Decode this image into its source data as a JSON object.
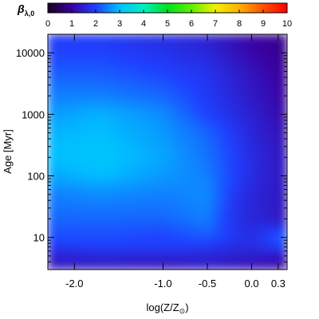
{
  "chart_data": {
    "type": "heatmap",
    "xlabel": "log(Z/Z",
    "xlabel_sub": "⊙",
    "xlabel_close": ")",
    "ylabel": "Age [Myr]",
    "colorbar_label": "β",
    "colorbar_label_sub": "λ,0",
    "colorbar_range": [
      0,
      10
    ],
    "colorbar_ticks": [
      "0",
      "1",
      "2",
      "3",
      "4",
      "5",
      "6",
      "7",
      "8",
      "9",
      "10"
    ],
    "colorbar_stops": [
      {
        "v": 0,
        "color": "#1a0020"
      },
      {
        "v": 1,
        "color": "#3a00a0"
      },
      {
        "v": 2,
        "color": "#1f40ff"
      },
      {
        "v": 3,
        "color": "#00c0ff"
      },
      {
        "v": 4,
        "color": "#00f0c0"
      },
      {
        "v": 5,
        "color": "#00e020"
      },
      {
        "v": 6,
        "color": "#60f000"
      },
      {
        "v": 7,
        "color": "#f0f000"
      },
      {
        "v": 8,
        "color": "#ffb000"
      },
      {
        "v": 9,
        "color": "#ff5000"
      },
      {
        "v": 10,
        "color": "#ff0000"
      }
    ],
    "x_range": [
      -2.3,
      0.4
    ],
    "y_range_log_myr": [
      3,
      20000
    ],
    "y_scale": "log",
    "x_ticks": [
      {
        "value": -2.0,
        "label": "-2.0"
      },
      {
        "value": -1.0,
        "label": "-1.0"
      },
      {
        "value": -0.5,
        "label": "-0.5"
      },
      {
        "value": 0.0,
        "label": "0.0"
      },
      {
        "value": 0.3,
        "label": "0.3"
      }
    ],
    "y_ticks": [
      {
        "value": 10,
        "label": "10"
      },
      {
        "value": 100,
        "label": "100"
      },
      {
        "value": 1000,
        "label": "1000"
      },
      {
        "value": 10000,
        "label": "10000"
      }
    ],
    "metallicity_grid": [
      -2.3,
      -1.7,
      -1.0,
      -0.5,
      -0.2,
      0.0,
      0.3,
      0.4
    ],
    "age_grid_myr": [
      3,
      5,
      7,
      10,
      20,
      50,
      100,
      200,
      500,
      1000,
      2000,
      5000,
      10000,
      20000
    ],
    "beta": [
      [
        1.3,
        1.3,
        1.2,
        1.3,
        1.2,
        1.1,
        1.0,
        0.9
      ],
      [
        1.5,
        1.6,
        1.6,
        1.6,
        1.5,
        1.5,
        1.4,
        1.3
      ],
      [
        1.9,
        2.0,
        2.0,
        1.9,
        1.7,
        1.7,
        2.0,
        2.1
      ],
      [
        2.1,
        2.1,
        2.0,
        2.2,
        1.9,
        1.7,
        2.2,
        2.3
      ],
      [
        2.3,
        2.3,
        2.3,
        2.5,
        1.8,
        1.6,
        1.4,
        1.3
      ],
      [
        2.5,
        2.6,
        2.5,
        2.6,
        1.9,
        1.6,
        1.4,
        1.3
      ],
      [
        2.8,
        3.0,
        2.7,
        2.5,
        2.0,
        1.7,
        1.4,
        1.3
      ],
      [
        3.0,
        3.1,
        2.8,
        2.4,
        2.0,
        1.7,
        1.4,
        1.3
      ],
      [
        2.9,
        3.0,
        2.7,
        2.3,
        1.9,
        1.6,
        1.3,
        1.2
      ],
      [
        2.7,
        2.9,
        2.6,
        2.0,
        1.7,
        1.5,
        1.2,
        1.1
      ],
      [
        2.5,
        2.5,
        2.3,
        1.9,
        1.6,
        1.4,
        1.1,
        1.0
      ],
      [
        2.2,
        2.2,
        2.0,
        1.8,
        1.5,
        1.3,
        1.0,
        0.9
      ],
      [
        2.0,
        2.0,
        1.8,
        1.6,
        1.3,
        1.1,
        0.9,
        0.8
      ],
      [
        1.9,
        1.9,
        1.7,
        1.5,
        1.2,
        1.0,
        0.9,
        0.8
      ]
    ]
  }
}
